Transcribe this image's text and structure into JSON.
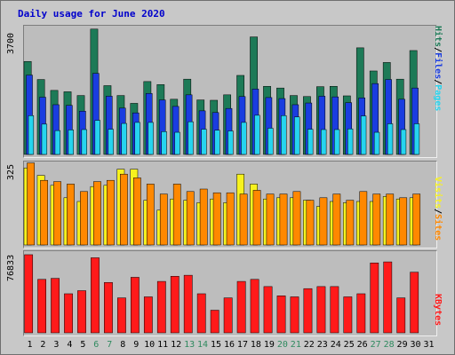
{
  "title": "Daily usage for June 2020",
  "colors": {
    "hits": "#1d7a57",
    "files": "#1a3de0",
    "pages": "#26d4ef",
    "visits": "#f7f21e",
    "sites": "#ff8800",
    "kbytes": "#ff1a1a",
    "weekend_label": "#2f8a5f"
  },
  "legend": {
    "top": [
      {
        "text": "Hits",
        "color": "#1d7a57"
      },
      {
        "text": "/",
        "color": "#000000"
      },
      {
        "text": "Files",
        "color": "#1a3de0"
      },
      {
        "text": "/",
        "color": "#000000"
      },
      {
        "text": "Pages",
        "color": "#26d4ef"
      }
    ],
    "middle": [
      {
        "text": "Visits",
        "color": "#f7f21e"
      },
      {
        "text": "/",
        "color": "#000000"
      },
      {
        "text": "Sites",
        "color": "#ff8800"
      }
    ],
    "bottom": [
      {
        "text": "KBytes",
        "color": "#ff1a1a"
      }
    ]
  },
  "chart_data": {
    "type": "bar",
    "title": "Daily usage for June 2020",
    "categories": [
      "1",
      "2",
      "3",
      "4",
      "5",
      "6",
      "7",
      "8",
      "9",
      "10",
      "11",
      "12",
      "13",
      "14",
      "15",
      "16",
      "17",
      "18",
      "19",
      "20",
      "21",
      "22",
      "23",
      "24",
      "25",
      "26",
      "27",
      "28",
      "29",
      "30",
      "31"
    ],
    "weekend_days": [
      "6",
      "7",
      "13",
      "14",
      "20",
      "21",
      "27",
      "28"
    ],
    "panels": [
      {
        "name": "hits_files_pages",
        "ymax_label": "3700",
        "ymax": 3700,
        "series": [
          {
            "name": "Hits",
            "color": "#1d7a57",
            "values": [
              2730,
              2200,
              1880,
              1840,
              1730,
              3680,
              2020,
              1730,
              1500,
              2140,
              2050,
              1620,
              2210,
              1600,
              1590,
              1750,
              2320,
              3450,
              2000,
              1950,
              1730,
              1700,
              1990,
              2000,
              1720,
              3130,
              2450,
              2700,
              2210,
              3050,
              0
            ]
          },
          {
            "name": "Files",
            "color": "#1a3de0",
            "values": [
              2330,
              1680,
              1460,
              1440,
              1270,
              2380,
              1710,
              1360,
              1220,
              1790,
              1600,
              1410,
              1750,
              1280,
              1230,
              1350,
              1700,
              1920,
              1670,
              1640,
              1460,
              1510,
              1710,
              1690,
              1520,
              1660,
              2080,
              2200,
              1620,
              1950,
              0
            ]
          },
          {
            "name": "Pages",
            "color": "#26d4ef",
            "values": [
              1140,
              890,
              700,
              720,
              730,
              1000,
              740,
              910,
              940,
              940,
              670,
              650,
              960,
              740,
              710,
              690,
              940,
              1150,
              770,
              1140,
              1100,
              740,
              730,
              730,
              750,
              1130,
              650,
              900,
              730,
              900,
              0
            ]
          }
        ]
      },
      {
        "name": "visits_sites",
        "ymax_label": "325",
        "ymax": 325,
        "series": [
          {
            "name": "Visits",
            "color": "#f7f21e",
            "values": [
              310,
              280,
              240,
              190,
              175,
              235,
              240,
              305,
              305,
              180,
              140,
              185,
              180,
              170,
              185,
              170,
              285,
              245,
              185,
              190,
              190,
              180,
              155,
              175,
              170,
              175,
              175,
              195,
              185,
              190,
              0
            ]
          },
          {
            "name": "Sites",
            "color": "#ff8800",
            "values": [
              330,
              260,
              255,
              245,
              215,
              255,
              260,
              285,
              270,
              245,
              205,
              245,
              215,
              225,
              210,
              210,
              205,
              220,
              205,
              205,
              215,
              180,
              190,
              205,
              180,
              215,
              205,
              205,
              190,
              205,
              0
            ]
          }
        ]
      },
      {
        "name": "kbytes",
        "ymax_label": "76833",
        "ymax": 76833,
        "series": [
          {
            "name": "KBytes",
            "color": "#ff1a1a",
            "values": [
              76000,
              52000,
              53000,
              38000,
              41000,
              73000,
              49000,
              34000,
              54000,
              35000,
              50000,
              55000,
              56000,
              38000,
              22000,
              34000,
              50000,
              52000,
              45000,
              36000,
              35000,
              43000,
              45000,
              45000,
              35000,
              38000,
              68000,
              69000,
              34000,
              59000,
              0
            ]
          }
        ]
      }
    ]
  }
}
